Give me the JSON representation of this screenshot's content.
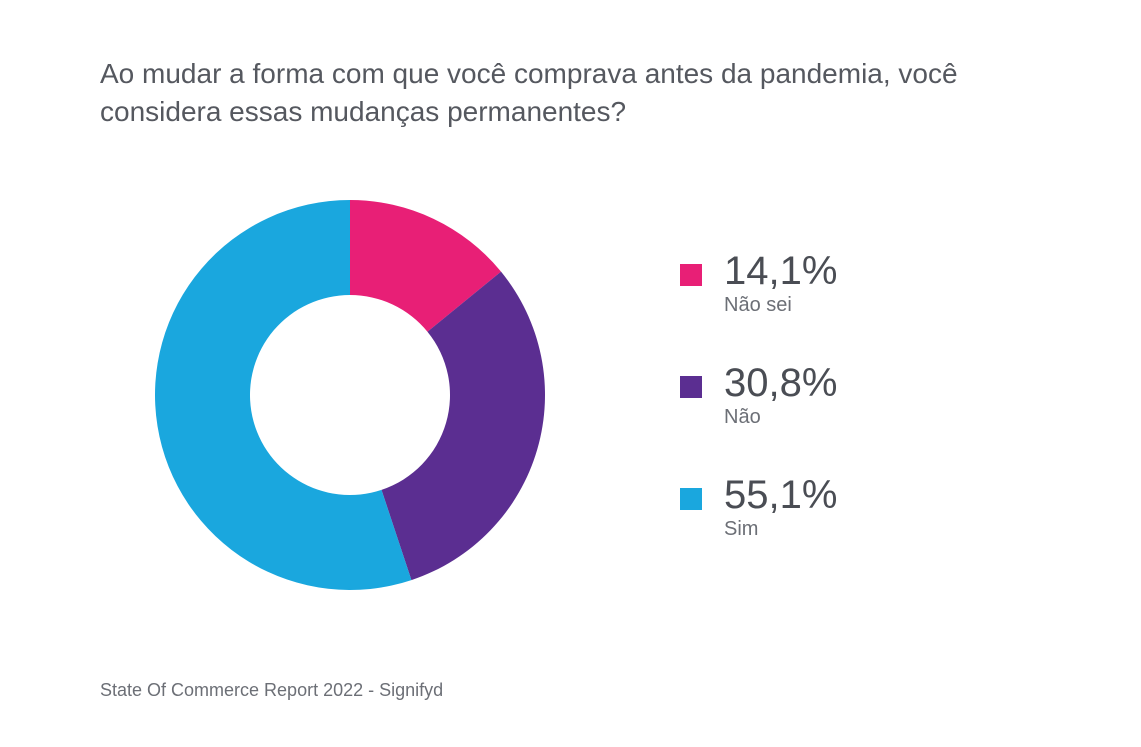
{
  "title": "Ao mudar a forma com que você comprava antes da pandemia, você considera essas mudanças permanentes?",
  "source": "State Of Commerce Report 2022 - Signifyd",
  "chart": {
    "type": "donut",
    "background_color": "#ffffff",
    "outer_radius": 195,
    "inner_radius": 100,
    "start_angle_deg": 0,
    "slices": [
      {
        "key": "nao_sei",
        "value": 14.1,
        "value_display": "14,1%",
        "label": "Não sei",
        "color": "#e81f76"
      },
      {
        "key": "nao",
        "value": 30.8,
        "value_display": "30,8%",
        "label": "Não",
        "color": "#5b2e91"
      },
      {
        "key": "sim",
        "value": 55.1,
        "value_display": "55,1%",
        "label": "Sim",
        "color": "#1aa7de"
      }
    ],
    "title_fontsize": 28,
    "title_color": "#55585f",
    "value_fontsize": 40,
    "value_color": "#4a4d54",
    "label_fontsize": 20,
    "label_color": "#6c6f76",
    "swatch_size": 22
  }
}
